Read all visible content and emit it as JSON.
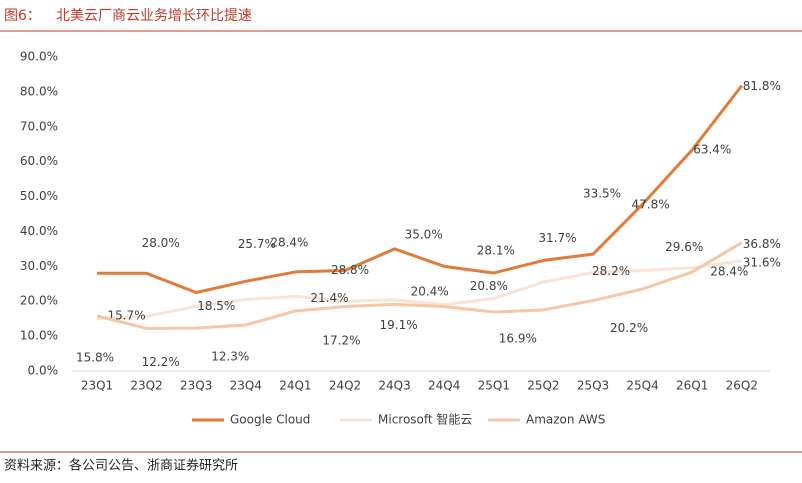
{
  "header": {
    "figure": "图6：",
    "title": "北美云厂商云业务增长环比提速"
  },
  "footer": {
    "source": "资料来源：各公司公告、浙商证券研究所"
  },
  "chart_data": {
    "type": "line",
    "categories": [
      "23Q1",
      "23Q2",
      "23Q3",
      "23Q4",
      "24Q1",
      "24Q2",
      "24Q3",
      "24Q4",
      "25Q1",
      "25Q2",
      "25Q3",
      "25Q4",
      "26Q1",
      "26Q2"
    ],
    "ylim": [
      0,
      90
    ],
    "yticks": [
      {
        "value": 0,
        "label": "0.0%"
      },
      {
        "value": 10,
        "label": "10.0%"
      },
      {
        "value": 20,
        "label": "20.0%"
      },
      {
        "value": 30,
        "label": "30.0%"
      },
      {
        "value": 40,
        "label": "40.0%"
      },
      {
        "value": 50,
        "label": "50.0%"
      },
      {
        "value": 60,
        "label": "60.0%"
      },
      {
        "value": 70,
        "label": "70.0%"
      },
      {
        "value": 80,
        "label": "80.0%"
      },
      {
        "value": 90,
        "label": "90.0%"
      }
    ],
    "grid": false,
    "legend": "bottom",
    "series": [
      {
        "name": "Google Cloud",
        "color": "#e07b39",
        "width": 3,
        "values": [
          28.0,
          28.0,
          22.5,
          25.7,
          28.4,
          28.8,
          35.0,
          30.0,
          28.1,
          31.7,
          33.5,
          47.8,
          63.4,
          81.8
        ],
        "value_labels": [
          null,
          "28.0%",
          null,
          "25.7%",
          "28.4%",
          "28.8%",
          "35.0%",
          null,
          "28.1%",
          "31.7%",
          "33.5%",
          "47.8%",
          "63.4%",
          "81.8%"
        ]
      },
      {
        "name": "Microsoft 智能云",
        "color": "#fbe3d4",
        "width": 3,
        "values": [
          15.0,
          15.7,
          18.5,
          20.5,
          21.4,
          20.0,
          20.4,
          19.0,
          20.8,
          25.5,
          28.2,
          28.8,
          29.6,
          31.6
        ],
        "value_labels": [
          null,
          "15.7%",
          "18.5%",
          null,
          "21.4%",
          null,
          "20.4%",
          null,
          "20.8%",
          null,
          "28.2%",
          null,
          "29.6%",
          "31.6%"
        ]
      },
      {
        "name": "Amazon AWS",
        "color": "#f6c7a6",
        "width": 3,
        "values": [
          15.8,
          12.2,
          12.3,
          13.2,
          17.2,
          18.5,
          19.1,
          18.5,
          16.9,
          17.5,
          20.2,
          23.5,
          28.4,
          36.8
        ],
        "value_labels": [
          "15.8%",
          "12.2%",
          "12.3%",
          null,
          "17.2%",
          null,
          "19.1%",
          null,
          "16.9%",
          null,
          "20.2%",
          null,
          "28.4%",
          "36.8%"
        ]
      }
    ]
  }
}
